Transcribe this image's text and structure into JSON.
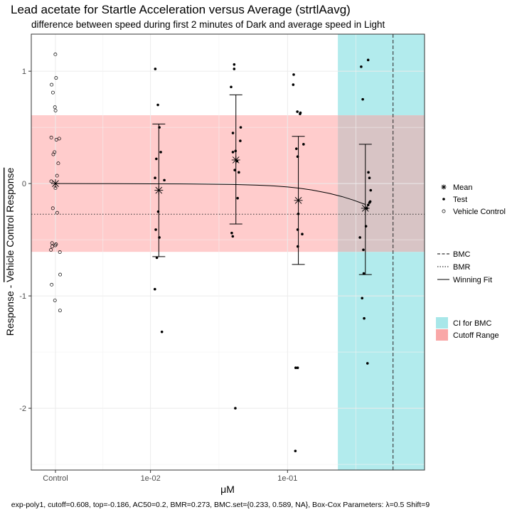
{
  "chart_data": {
    "type": "scatter",
    "title": "Lead acetate for Startle Acceleration versus Average (strtlAavg)",
    "subtitle": "difference between speed during first 2 minutes of Dark and average speed in Light",
    "xlabel": "μM",
    "ylabel_part1": "Response - ",
    "ylabel_part2": "Vehicle Control Response",
    "caption": "exp-poly1, cutoff=0.608, top=-0.186, AC50=0.2, BMR=0.273, BMC.set={0.233, 0.589, NA}, Box-Cox Parameters: λ=0.5 Shift=9",
    "x_scale": "log10",
    "xlim": [
      -2.87,
      0.0
    ],
    "ylim": [
      -2.55,
      1.33
    ],
    "grid": true,
    "x_ticks": [
      {
        "x": "Control",
        "label": "Control"
      },
      {
        "x": 0.01,
        "label": "1e-02"
      },
      {
        "x": 0.1,
        "label": "1e-01"
      }
    ],
    "y_ticks": [
      {
        "value": -2,
        "label": "-2"
      },
      {
        "value": -1,
        "label": "-1"
      },
      {
        "value": 0,
        "label": "0"
      },
      {
        "value": 1,
        "label": "1"
      }
    ],
    "cutoff": 0.608,
    "bmr": -0.273,
    "bmc": 0.589,
    "ci_bmc": [
      0.233,
      1.0
    ],
    "vehicle_control": [
      1.15,
      0.94,
      0.88,
      0.81,
      0.68,
      0.65,
      0.41,
      0.4,
      0.39,
      0.28,
      0.26,
      0.18,
      0.07,
      0.02,
      -0.04,
      -0.22,
      -0.26,
      -0.53,
      -0.54,
      -0.55,
      -0.56,
      -0.59,
      -0.61,
      -0.81,
      -0.9,
      -1.04,
      -1.13
    ],
    "test_points": [
      {
        "dose": 0.0115,
        "values": [
          1.02,
          0.7,
          0.5,
          0.28,
          0.22,
          0.05,
          0.03,
          -0.25,
          -0.41,
          -0.48,
          -0.66,
          -0.94,
          -1.32
        ]
      },
      {
        "dose": 0.042,
        "values": [
          1.06,
          1.02,
          0.86,
          0.5,
          0.45,
          0.38,
          0.29,
          0.28,
          0.2,
          0.12,
          0.1,
          -0.13,
          -0.44,
          -0.47,
          -2.0
        ]
      },
      {
        "dose": 0.12,
        "values": [
          0.97,
          0.88,
          0.64,
          0.63,
          0.62,
          0.35,
          0.31,
          0.24,
          -0.27,
          -0.41,
          -0.45,
          -0.56,
          -1.64,
          -1.64,
          -2.38
        ]
      },
      {
        "dose": 0.37,
        "values": [
          1.1,
          1.04,
          0.75,
          0.1,
          0.05,
          -0.06,
          -0.16,
          -0.17,
          -0.19,
          -0.22,
          -0.38,
          -0.48,
          -0.59,
          -0.8,
          -1.02,
          -1.2,
          -1.6
        ]
      }
    ],
    "means": [
      {
        "x": "Control",
        "mean": 0.0
      },
      {
        "x": 0.0115,
        "mean": -0.06,
        "lower": -0.65,
        "upper": 0.53
      },
      {
        "x": 0.042,
        "mean": 0.21,
        "lower": -0.36,
        "upper": 0.79
      },
      {
        "x": 0.12,
        "mean": -0.15,
        "lower": -0.72,
        "upper": 0.42
      },
      {
        "x": 0.37,
        "mean": -0.22,
        "lower": -0.81,
        "upper": 0.35
      }
    ],
    "fit": {
      "control_level": 0.0,
      "x": [
        0.0023,
        0.005,
        0.01,
        0.02,
        0.04,
        0.06,
        0.08,
        0.1,
        0.12,
        0.15,
        0.2,
        0.25,
        0.3,
        0.37
      ],
      "y": [
        0.0,
        -0.001,
        -0.002,
        -0.004,
        -0.008,
        -0.014,
        -0.021,
        -0.03,
        -0.04,
        -0.057,
        -0.086,
        -0.116,
        -0.146,
        -0.186
      ]
    },
    "legend": {
      "group1": [
        {
          "symbol": "asterisk",
          "label": "Mean"
        },
        {
          "symbol": "dot",
          "label": "Test"
        },
        {
          "symbol": "circle",
          "label": "Vehicle Control"
        }
      ],
      "group2": [
        {
          "symbol": "dashed",
          "label": "BMC"
        },
        {
          "symbol": "dotted",
          "label": "BMR"
        },
        {
          "symbol": "solid",
          "label": "Winning Fit"
        }
      ],
      "group3": [
        {
          "symbol": "ci",
          "label": "CI for BMC"
        },
        {
          "symbol": "cutoff",
          "label": "Cutoff Range"
        }
      ]
    },
    "colors": {
      "cutoff_fill": "#ffcccc",
      "ci_fill": "#b2ebed",
      "overlap_fill": "#d8c4c5",
      "ci_legend": "#a8e7e9",
      "cutoff_legend": "#f9a7a7",
      "grid": "#ebebeb",
      "ink": "#000000"
    }
  }
}
